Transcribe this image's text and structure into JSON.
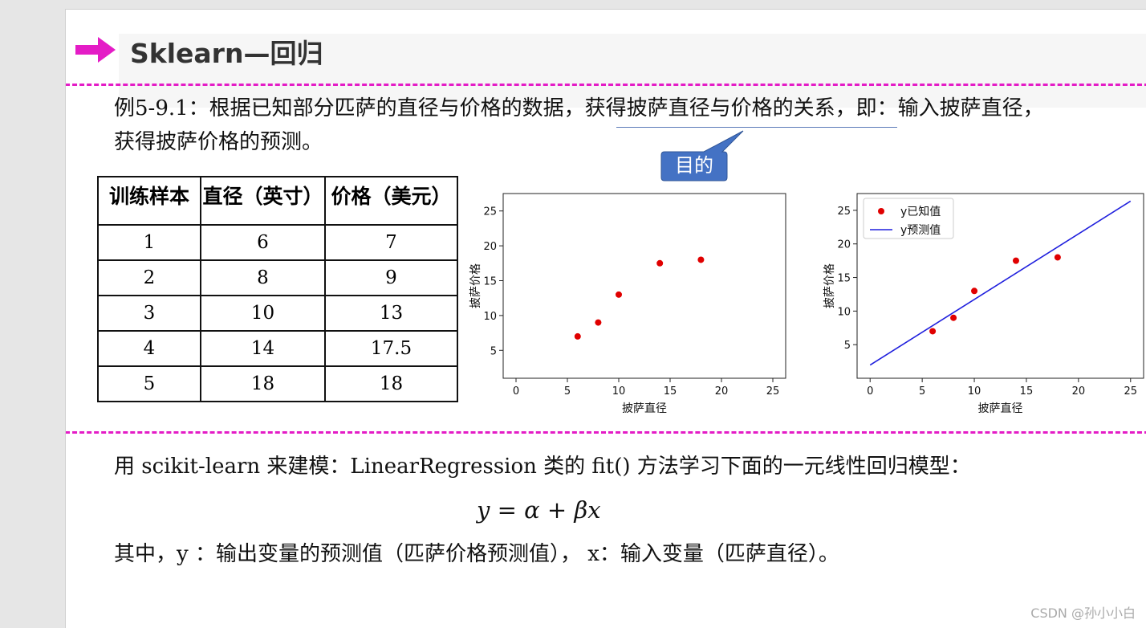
{
  "slide": {
    "title": "Sklearn—回归",
    "accent_color": "#e41cc6",
    "arrow_icon": "right-arrow-icon"
  },
  "example": {
    "line1": "例5-9.1：根据已知部分匹萨的直径与价格的数据，获得披萨直径与价格的关系，即：输入披萨直径，",
    "line2": "获得披萨价格的预测。"
  },
  "callout": {
    "label": "目的",
    "color": "#4472c4"
  },
  "table": {
    "headers": [
      "训练样本",
      "直径（英寸）",
      "价格（美元）"
    ],
    "rows": [
      [
        "1",
        "6",
        "7"
      ],
      [
        "2",
        "8",
        "9"
      ],
      [
        "3",
        "10",
        "13"
      ],
      [
        "4",
        "14",
        "17.5"
      ],
      [
        "5",
        "18",
        "18"
      ]
    ]
  },
  "chart_data": [
    {
      "type": "scatter",
      "title": "",
      "xlabel": "披萨直径",
      "ylabel": "披萨价格",
      "xlim": [
        -1.25,
        26.25
      ],
      "ylim": [
        1,
        27.5
      ],
      "xticks": [
        0,
        5,
        10,
        15,
        20,
        25
      ],
      "yticks": [
        5,
        10,
        15,
        20,
        25
      ],
      "grid": false,
      "series": [
        {
          "color": "#e00000",
          "x": [
            6,
            8,
            10,
            14,
            18
          ],
          "y": [
            7,
            9,
            13,
            17.5,
            18
          ]
        }
      ]
    },
    {
      "type": "scatter",
      "title": "",
      "xlabel": "披萨直径",
      "ylabel": "披萨价格",
      "xlim": [
        -1.25,
        26.25
      ],
      "ylim": [
        0,
        27.5
      ],
      "xticks": [
        0,
        5,
        10,
        15,
        20,
        25
      ],
      "yticks": [
        5,
        10,
        15,
        20,
        25
      ],
      "grid": false,
      "legend_position": "top-left",
      "series": [
        {
          "name": "y已知值",
          "kind": "scatter",
          "color": "#e00000",
          "x": [
            6,
            8,
            10,
            14,
            18
          ],
          "y": [
            7,
            9,
            13,
            17.5,
            18
          ]
        },
        {
          "name": "y预测值",
          "kind": "line",
          "color": "#1f1fdd",
          "x": [
            0,
            25
          ],
          "y": [
            1.97,
            26.37
          ]
        }
      ]
    }
  ],
  "method": {
    "text": "用 scikit-learn 来建模：LinearRegression 类的 fit() 方法学习下面的一元线性回归模型："
  },
  "formula": {
    "text": "y = α + βx"
  },
  "explain": {
    "text": "其中，y ：输出变量的预测值（匹萨价格预测值）， x：输入变量（匹萨直径）。"
  },
  "watermark": "CSDN @孙小小白"
}
